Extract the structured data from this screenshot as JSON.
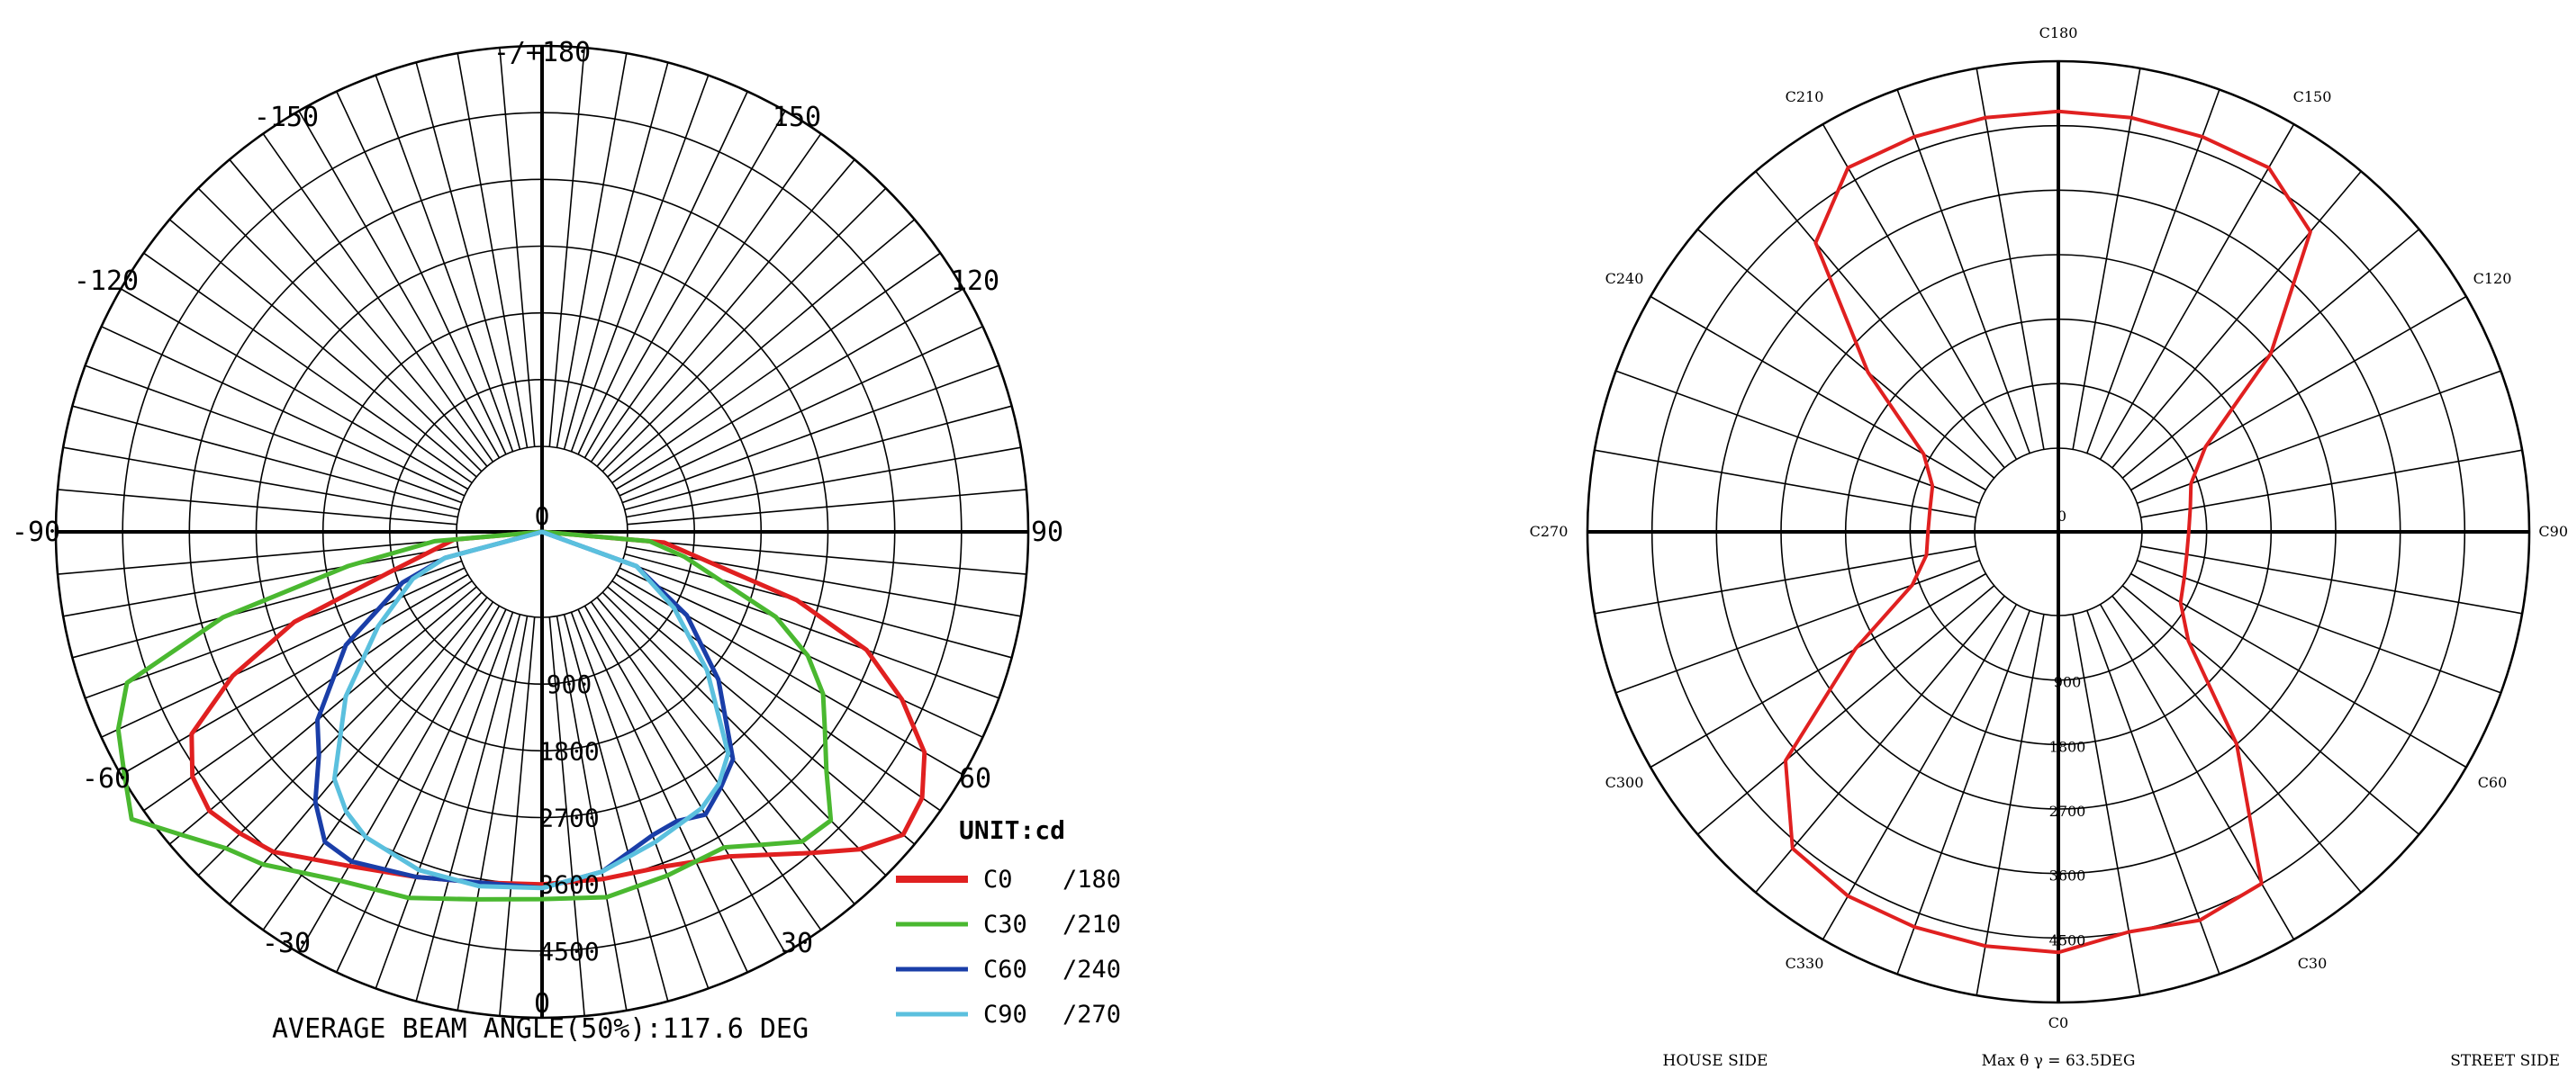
{
  "chart_data": [
    {
      "type": "polar",
      "chart_name": "intensity-distribution",
      "unit_label": "UNIT:cd",
      "angle_labels": [
        "0",
        "30",
        "60",
        "90",
        "120",
        "150",
        "-/+180",
        "-150",
        "-120",
        "-90",
        "-60",
        "-30"
      ],
      "ring_labels": [
        "0",
        "900",
        "1800",
        "2700",
        "3600",
        "4500"
      ],
      "max_value": 5400,
      "bottom_caption": "AVERAGE BEAM ANGLE(50%):117.6 DEG",
      "series": [
        {
          "name": "C0",
          "suffix": "/180",
          "color": "#e02020",
          "angles": [
            -85,
            -75,
            -70,
            -65,
            -60,
            -55,
            -50,
            -45,
            -40,
            -30,
            -20,
            -10,
            0,
            10,
            20,
            30,
            40,
            45,
            50,
            55,
            60,
            65,
            70,
            75,
            85
          ],
          "values": [
            40,
            1000,
            2400,
            3450,
            4300,
            4600,
            4700,
            4600,
            4480,
            4050,
            3800,
            3650,
            3600,
            3600,
            3650,
            3900,
            4500,
            4900,
            5200,
            5100,
            4800,
            4200,
            3500,
            2400,
            500
          ]
        },
        {
          "name": "C30",
          "suffix": "/210",
          "color": "#4ab830",
          "angles": [
            -85,
            -80,
            -75,
            -70,
            -65,
            -60,
            -55,
            -50,
            -45,
            -40,
            -30,
            -20,
            -10,
            0,
            10,
            20,
            30,
            35,
            40,
            45,
            50,
            55,
            60,
            65,
            70,
            80,
            85
          ],
          "values": [
            300,
            1500,
            3300,
            4800,
            5150,
            5350,
            5600,
            5200,
            4880,
            4700,
            4280,
            4100,
            3880,
            3800,
            3850,
            3780,
            3760,
            4000,
            4300,
            4350,
            3850,
            3500,
            3220,
            2800,
            2200,
            800,
            300
          ]
        },
        {
          "name": "C60",
          "suffix": "/240",
          "color": "#1a3ea8",
          "angles": [
            -75,
            -70,
            -60,
            -50,
            -45,
            -40,
            -35,
            -30,
            -20,
            -10,
            0,
            10,
            20,
            25,
            30,
            35,
            40,
            50,
            60,
            70
          ],
          "values": [
            200,
            850,
            1900,
            2800,
            3100,
            3600,
            3950,
            3980,
            3800,
            3650,
            3650,
            3500,
            3200,
            3150,
            3250,
            3050,
            2850,
            1950,
            1100,
            200
          ]
        },
        {
          "name": "C90",
          "suffix": "/270",
          "color": "#5bc0de",
          "angles": [
            -75,
            -70,
            -60,
            -50,
            -40,
            -35,
            -30,
            -20,
            -10,
            0,
            10,
            20,
            30,
            35,
            40,
            50,
            60,
            70
          ],
          "values": [
            200,
            700,
            1400,
            2300,
            3200,
            3450,
            3600,
            3700,
            3700,
            3650,
            3500,
            3300,
            3150,
            3000,
            2750,
            1750,
            900,
            200
          ]
        }
      ]
    },
    {
      "type": "polar",
      "chart_name": "isocandela-c-plane",
      "angle_labels": [
        "C0",
        "C30",
        "C60",
        "C90",
        "C120",
        "C150",
        "C180",
        "C210",
        "C240",
        "C270",
        "C300",
        "C330"
      ],
      "ring_labels": [
        "0",
        "900",
        "1800",
        "2700",
        "3600",
        "4500"
      ],
      "max_value": 5400,
      "bottom_left": "HOUSE SIDE",
      "bottom_center": "Max θ γ = 63.5DEG",
      "bottom_right": "STREET SIDE",
      "series": [
        {
          "color": "#e02020",
          "angles": [
            0,
            10,
            20,
            30,
            40,
            50,
            60,
            70,
            80,
            90,
            100,
            110,
            120,
            130,
            140,
            150,
            160,
            170,
            180,
            190,
            200,
            210,
            220,
            230,
            240,
            250,
            260,
            270,
            280,
            290,
            300,
            310,
            320,
            330,
            340,
            350
          ],
          "values": [
            4700,
            4500,
            4600,
            4500,
            2700,
            1200,
            800,
            700,
            650,
            650,
            700,
            800,
            1200,
            2700,
            4300,
            4700,
            4700,
            4700,
            4700,
            4700,
            4700,
            4700,
            4100,
            2300,
            1000,
            700,
            650,
            650,
            700,
            1000,
            2100,
            3800,
            4600,
            4700,
            4700,
            4700
          ]
        }
      ]
    }
  ]
}
